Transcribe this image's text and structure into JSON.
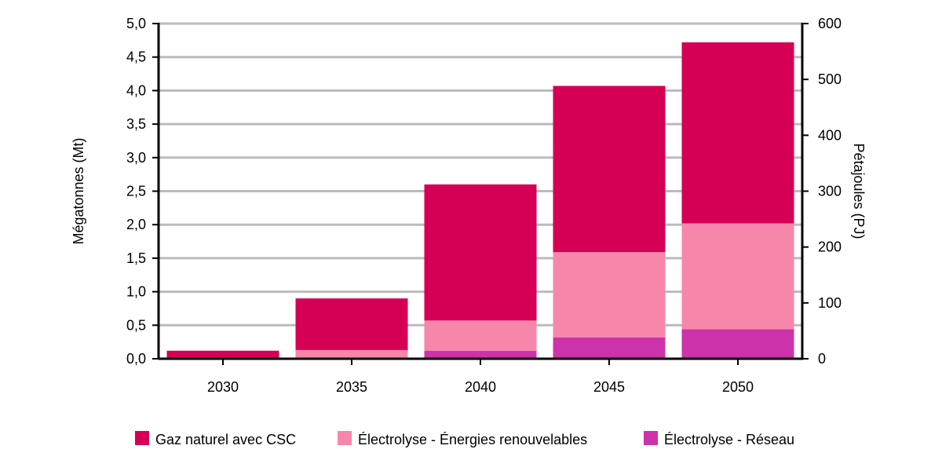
{
  "chart_data": {
    "type": "bar",
    "stacked": true,
    "categories": [
      "2030",
      "2035",
      "2040",
      "2045",
      "2050"
    ],
    "series": [
      {
        "name": "Électrolyse - Réseau",
        "color": "#CC33AA",
        "values": [
          0.0,
          0.0,
          0.12,
          0.32,
          0.44
        ]
      },
      {
        "name": "Électrolyse - Énergies renouvelables",
        "color": "#F787AA",
        "values": [
          0.0,
          0.13,
          0.45,
          1.27,
          1.58
        ]
      },
      {
        "name": "Gaz naturel avec CSC",
        "color": "#D50055",
        "values": [
          0.12,
          0.77,
          2.03,
          2.48,
          2.7
        ]
      }
    ],
    "legend_order": [
      "Gaz naturel avec CSC",
      "Électrolyse - Énergies renouvelables",
      "Électrolyse - Réseau"
    ],
    "ylabel": "Mégatonnes (Mt)",
    "ylim": [
      0,
      5
    ],
    "yticks": [
      "0,0",
      "0,5",
      "1,0",
      "1,5",
      "2,0",
      "2,5",
      "3,0",
      "3,5",
      "4,0",
      "4,5",
      "5,0"
    ],
    "y2label": "Pétajoules (PJ)",
    "y2lim": [
      0,
      600
    ],
    "y2ticks": [
      "0",
      "100",
      "200",
      "300",
      "400",
      "500",
      "600"
    ],
    "grid": true,
    "legend_position": "bottom",
    "gridline_color": "#BBBBBB"
  }
}
